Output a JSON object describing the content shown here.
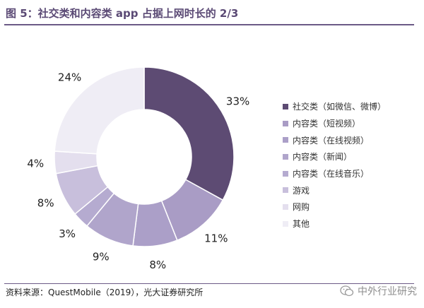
{
  "title": "图 5：社交类和内容类 app 占据上网时长的 2/3",
  "chart_data": {
    "type": "pie",
    "variant": "donut",
    "title": "社交类和内容类 app 占据上网时长的 2/3",
    "unit": "%",
    "categories": [
      "社交类（如微信、微博）",
      "内容类（短视频）",
      "内容类（在线视频）",
      "内容类（新闻）",
      "内容类（在线音乐）",
      "游戏",
      "网购",
      "其他"
    ],
    "values": [
      33,
      11,
      8,
      9,
      3,
      8,
      4,
      24
    ],
    "labels": [
      "33%",
      "11%",
      "8%",
      "9%",
      "3%",
      "8%",
      "4%",
      "24%"
    ],
    "colors": [
      "#5d4b73",
      "#a99cc5",
      "#ab9fc8",
      "#b0a5cb",
      "#b5abd0",
      "#c8bfdc",
      "#e4dfee",
      "#efedf5"
    ],
    "legend_position": "right"
  },
  "source": "资料来源：QuestMobile（2019），光大证券研究所",
  "watermark": "中外行业研究"
}
